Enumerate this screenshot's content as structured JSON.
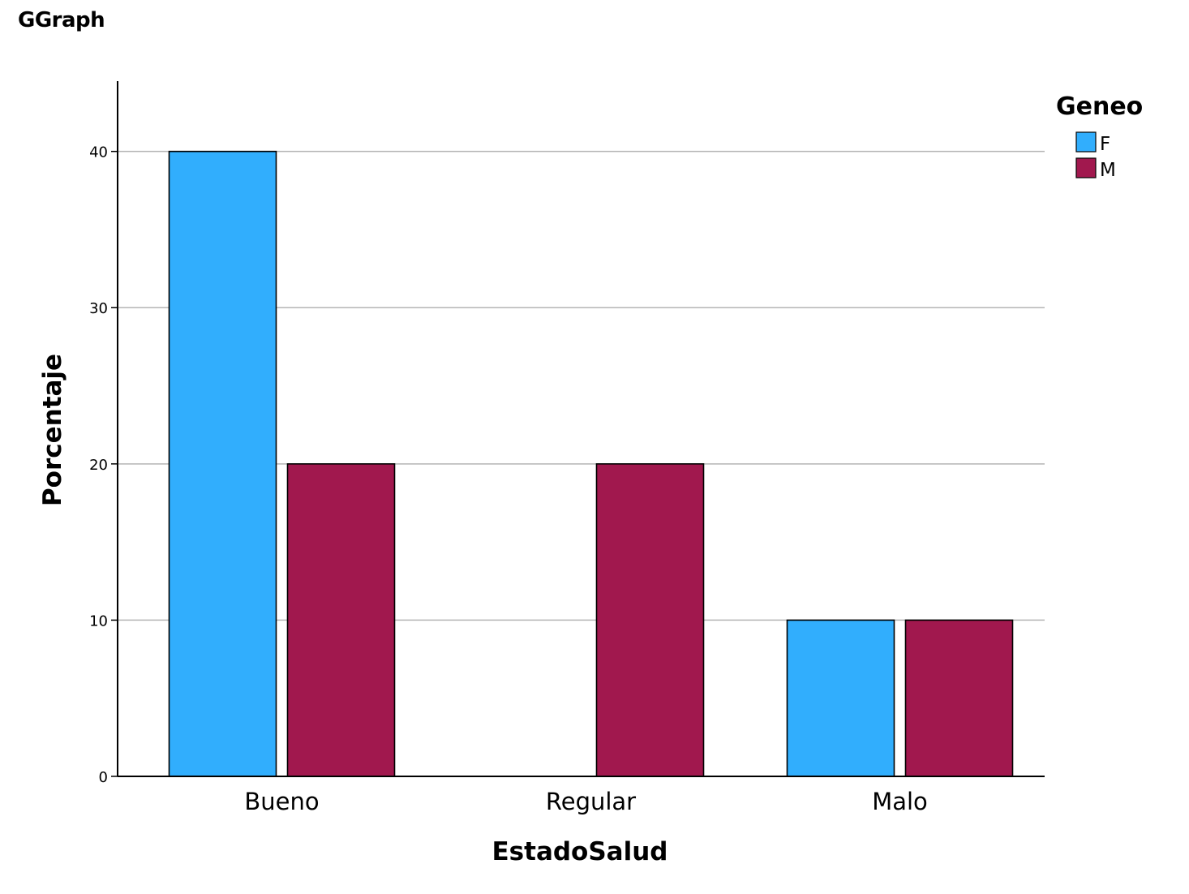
{
  "header": {
    "title": "GGraph"
  },
  "chart_data": {
    "type": "bar",
    "title": "",
    "xlabel": "EstadoSalud",
    "ylabel": "Porcentaje",
    "categories": [
      "Bueno",
      "Regular",
      "Malo"
    ],
    "series": [
      {
        "name": "F",
        "values": [
          40,
          0,
          10
        ],
        "color": "#31AEFD"
      },
      {
        "name": "M",
        "values": [
          20,
          20,
          10
        ],
        "color": "#A1184E"
      }
    ],
    "ylim": [
      0,
      44.5
    ],
    "yticks": [
      0,
      10,
      20,
      30,
      40
    ],
    "grid": true,
    "legend": {
      "title": "Geneo",
      "placement": "top-right"
    }
  }
}
